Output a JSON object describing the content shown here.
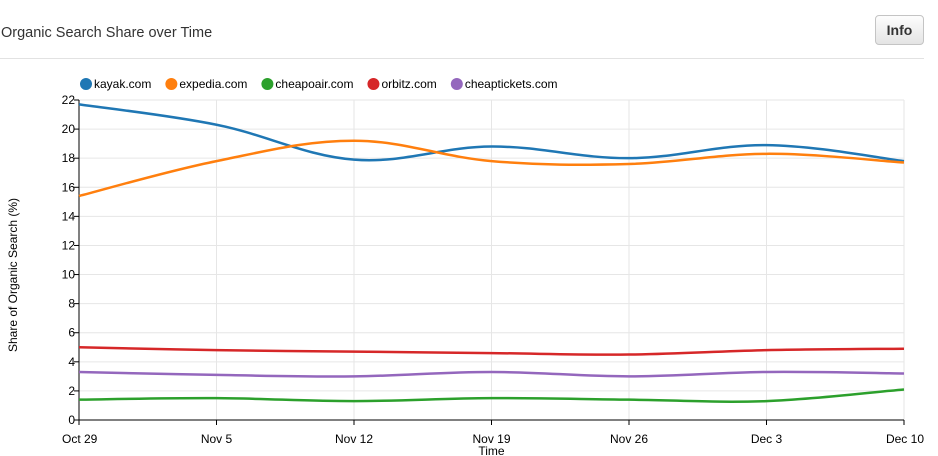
{
  "header": {
    "title": "Organic Search Share over Time",
    "info_label": "Info"
  },
  "chart_data": {
    "type": "line",
    "title": "Organic Search Share over Time",
    "xlabel": "Time",
    "ylabel": "Share of Organic Search (%)",
    "categories": [
      "Oct 29",
      "Nov 5",
      "Nov 12",
      "Nov 19",
      "Nov 26",
      "Dec 3",
      "Dec 10"
    ],
    "ylim": [
      0,
      22
    ],
    "yticks": [
      0,
      2,
      4,
      6,
      8,
      10,
      12,
      14,
      16,
      18,
      20,
      22
    ],
    "grid": true,
    "legend_position": "top-left",
    "series": [
      {
        "name": "kayak.com",
        "color": "#1f77b4",
        "values": [
          21.7,
          20.3,
          17.9,
          18.8,
          18.0,
          18.9,
          17.8
        ]
      },
      {
        "name": "expedia.com",
        "color": "#ff7f0e",
        "values": [
          15.4,
          17.8,
          19.2,
          17.8,
          17.6,
          18.3,
          17.7
        ]
      },
      {
        "name": "cheapoair.com",
        "color": "#2ca02c",
        "values": [
          1.4,
          1.5,
          1.3,
          1.5,
          1.4,
          1.3,
          2.1
        ]
      },
      {
        "name": "orbitz.com",
        "color": "#d62728",
        "values": [
          5.0,
          4.8,
          4.7,
          4.6,
          4.5,
          4.8,
          4.9
        ]
      },
      {
        "name": "cheaptickets.com",
        "color": "#9467bd",
        "values": [
          3.3,
          3.1,
          3.0,
          3.3,
          3.0,
          3.3,
          3.2
        ]
      }
    ]
  }
}
